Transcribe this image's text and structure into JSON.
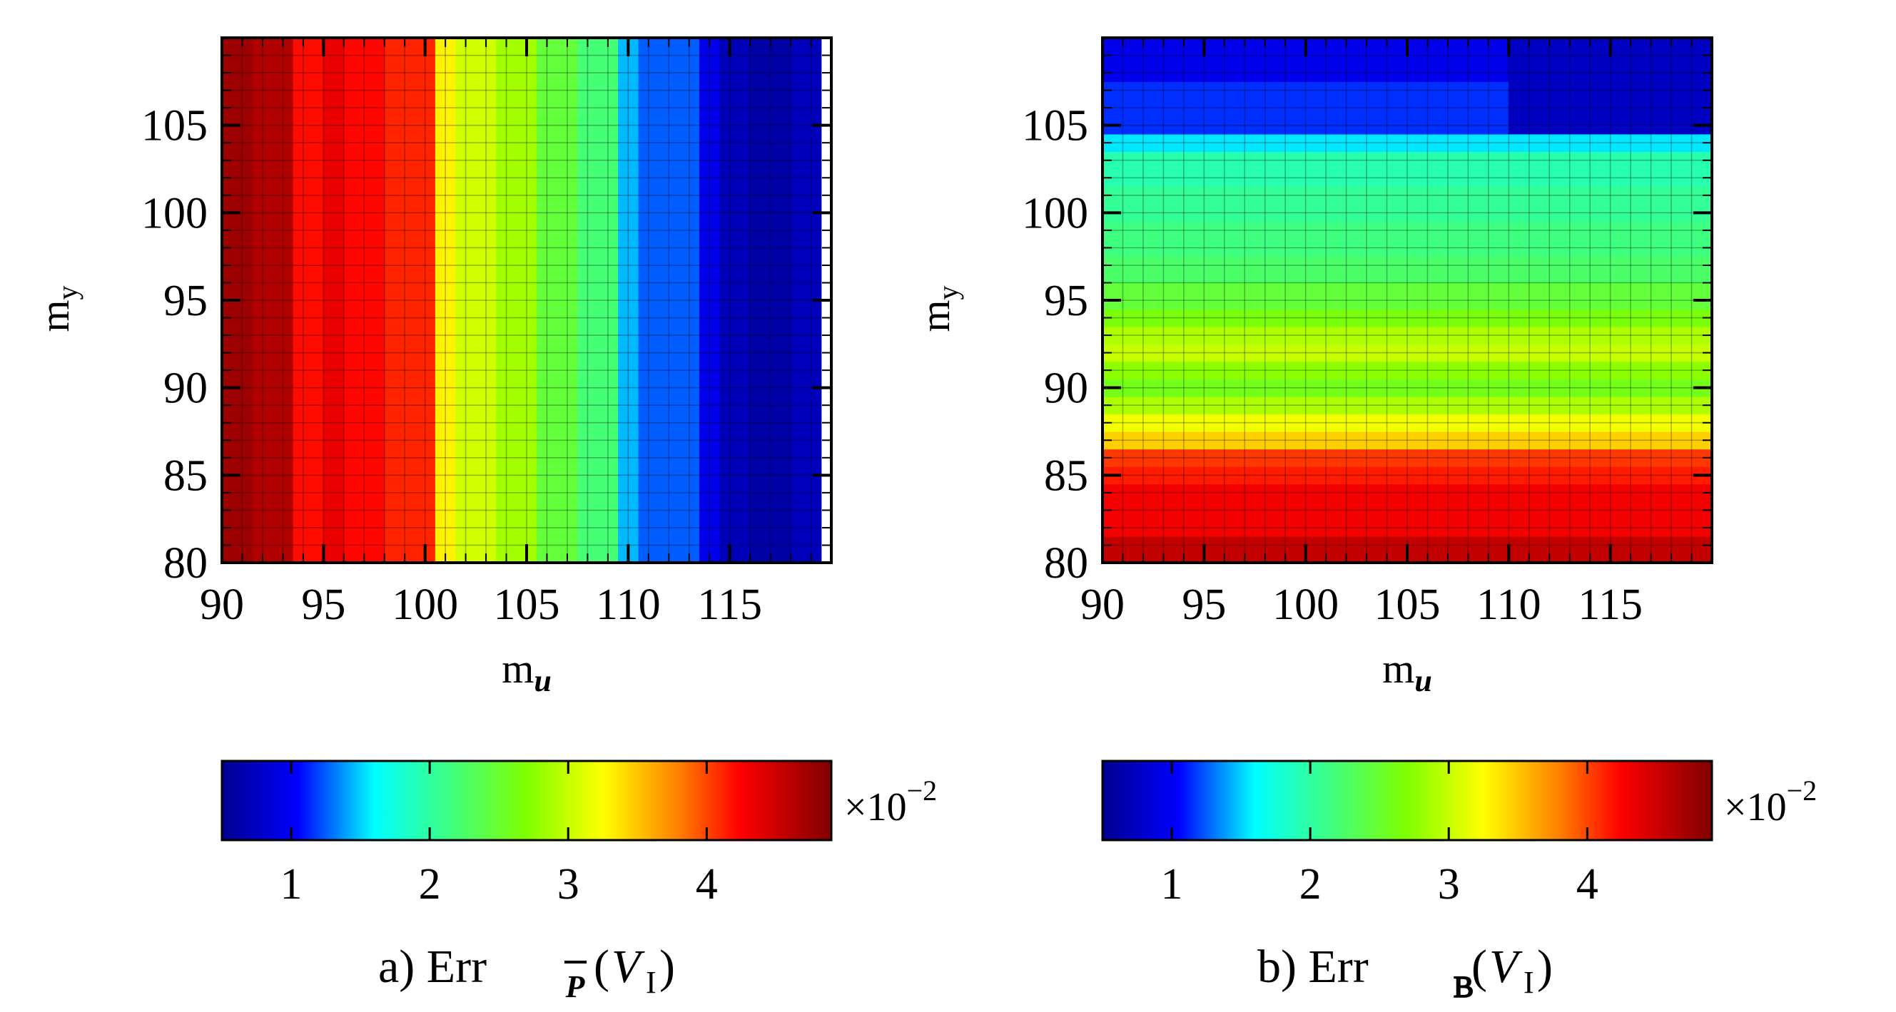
{
  "chart_data": [
    {
      "type": "heatmap",
      "panel_label": "a) Err",
      "error_symbol": "P",
      "space_symbol": "V",
      "space_subscript": "I",
      "xlabel": "m",
      "xlabel_sub": "u",
      "ylabel": "m",
      "ylabel_sub": "y",
      "x_range": [
        90,
        120
      ],
      "y_range": [
        80,
        110
      ],
      "x_ticks": [
        90,
        95,
        100,
        105,
        110,
        115
      ],
      "y_ticks": [
        80,
        85,
        90,
        95,
        100,
        105
      ],
      "grid_step": 1,
      "color_range": [
        0.5,
        4.9
      ],
      "color_scale": "×10",
      "color_scale_exp": "−2",
      "colorbar_ticks": [
        1,
        2,
        3,
        4
      ],
      "varies_along": "x",
      "band_edges": [
        90,
        91.5,
        93.5,
        95,
        96,
        98,
        100.5,
        101.5,
        103.5,
        105.5,
        107.5,
        109.5,
        110.5,
        113.5,
        114.5,
        116,
        118,
        119.5
      ],
      "band_values": [
        4.75,
        4.65,
        4.2,
        4.35,
        4.22,
        4.12,
        3.3,
        3.05,
        2.85,
        2.45,
        2.2,
        1.45,
        1.25,
        0.95,
        0.7,
        0.62,
        0.72
      ]
    },
    {
      "type": "heatmap",
      "panel_label": "b) Err",
      "error_symbol": "B",
      "space_symbol": "V",
      "space_subscript": "I",
      "xlabel": "m",
      "xlabel_sub": "u",
      "ylabel": "m",
      "ylabel_sub": "y",
      "x_range": [
        90,
        120
      ],
      "y_range": [
        80,
        110
      ],
      "x_ticks": [
        90,
        95,
        100,
        105,
        110,
        115
      ],
      "y_ticks": [
        80,
        85,
        90,
        95,
        100,
        105
      ],
      "grid_step": 1,
      "color_range": [
        0.5,
        4.9
      ],
      "color_scale": "×10",
      "color_scale_exp": "−2",
      "colorbar_ticks": [
        1,
        2,
        3,
        4
      ],
      "varies_along": "y",
      "band_edges": [
        80,
        81.5,
        84.5,
        85.5,
        86.5,
        87.5,
        88.5,
        89.5,
        90.5,
        91.5,
        92.5,
        93.5,
        94.5,
        96,
        97.5,
        99.5,
        101.5,
        103.5,
        104.5,
        107.5,
        110
      ],
      "band_values": [
        4.55,
        4.3,
        4.15,
        4.05,
        3.45,
        3.2,
        2.9,
        2.6,
        2.75,
        3.0,
        2.9,
        2.65,
        2.45,
        2.25,
        2.15,
        2.05,
        1.95,
        1.55,
        1.15,
        0.95
      ],
      "top_right_block": {
        "x_from": 110,
        "y_from": 104.5,
        "value": 0.75
      }
    }
  ]
}
